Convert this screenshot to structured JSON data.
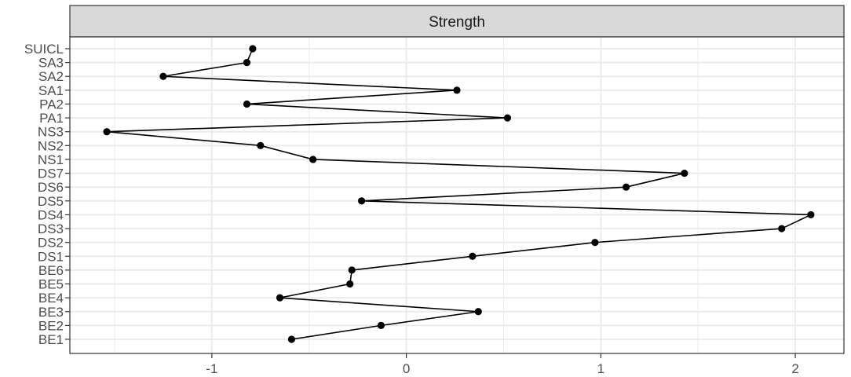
{
  "chart_data": {
    "type": "line",
    "facet_label": "Strength",
    "title": "",
    "xlabel": "",
    "ylabel": "",
    "xlim": [
      -1.73,
      2.25
    ],
    "x_ticks": [
      -1,
      0,
      1,
      2
    ],
    "x_tick_labels": [
      "-1",
      "0",
      "1",
      "2"
    ],
    "categories": [
      "BE1",
      "BE2",
      "BE3",
      "BE4",
      "BE5",
      "BE6",
      "DS1",
      "DS2",
      "DS3",
      "DS4",
      "DS5",
      "DS6",
      "DS7",
      "NS1",
      "NS2",
      "NS3",
      "PA1",
      "PA2",
      "SA1",
      "SA2",
      "SA3",
      "SUICL"
    ],
    "values": [
      -0.59,
      -0.13,
      0.37,
      -0.65,
      -0.29,
      -0.28,
      0.34,
      0.97,
      1.93,
      2.08,
      -0.23,
      1.13,
      1.43,
      -0.48,
      -0.75,
      -1.54,
      0.52,
      -0.82,
      0.26,
      -1.25,
      -0.82,
      -0.79
    ],
    "grid": true,
    "colors": {
      "line": "#000000",
      "point": "#000000",
      "strip_fill": "#d9d9d9",
      "grid": "#ebebeb",
      "panel_border": "#333333"
    }
  }
}
